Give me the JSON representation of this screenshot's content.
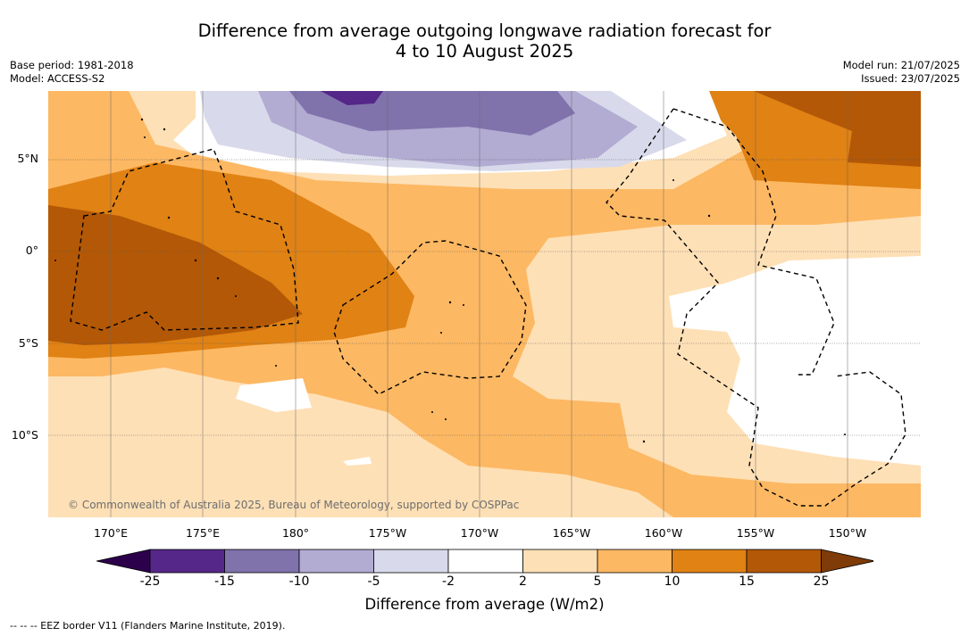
{
  "title": {
    "line1": "Difference from average outgoing longwave radiation forecast for",
    "line2": "4 to 10 August 2025"
  },
  "left_meta": {
    "base_period": "Base period: 1981-2018",
    "model": "Model: ACCESS-S2"
  },
  "right_meta": {
    "model_run": "Model run: 21/07/2025",
    "issued": "Issued: 23/07/2025"
  },
  "map": {
    "lat_labels": [
      "5°N",
      "0°",
      "5°S",
      "10°S"
    ],
    "lon_labels": [
      "170°E",
      "175°E",
      "180°",
      "175°W",
      "170°W",
      "165°W",
      "160°W",
      "155°W",
      "150°W"
    ],
    "credit": "© Commonwealth of Australia 2025, Bureau of Meteorology, supported by COSPPac",
    "eez_style": "dashed"
  },
  "colorbar": {
    "ticks": [
      "-25",
      "-15",
      "-10",
      "-5",
      "-2",
      "2",
      "5",
      "10",
      "15",
      "25"
    ],
    "colors": [
      "#542788",
      "#8073ac",
      "#b2abd2",
      "#d8daeb",
      "#ffffff",
      "#fee0b6",
      "#fdb863",
      "#e08214",
      "#b35806"
    ],
    "under_color": "#2d004b",
    "over_color": "#7f3b08",
    "label": "Difference from average (W/m2)"
  },
  "footer": "--  --  -- EEZ border V11 (Flanders Marine Institute, 2019)."
}
